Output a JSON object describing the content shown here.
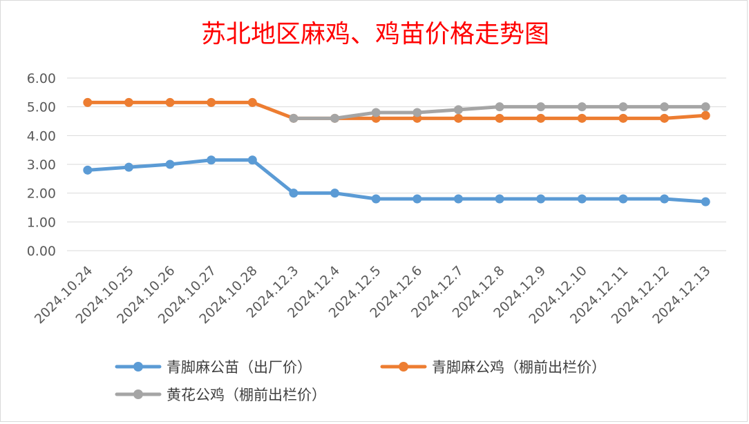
{
  "chart_data": {
    "type": "line",
    "title": "苏北地区麻鸡、鸡苗价格走势图",
    "xlabel": "",
    "ylabel": "",
    "ylim": [
      0,
      6
    ],
    "yticks": [
      "0.00",
      "1.00",
      "2.00",
      "3.00",
      "4.00",
      "5.00",
      "6.00"
    ],
    "grid": "horizontal",
    "legend_position": "bottom",
    "categories": [
      "2024.10.24",
      "2024.10.25",
      "2024.10.26",
      "2024.10.27",
      "2024.10.28",
      "2024.12.3",
      "2024.12.4",
      "2024.12.5",
      "2024.12.6",
      "2024.12.7",
      "2024.12.8",
      "2024.12.9",
      "2024.12.10",
      "2024.12.11",
      "2024.12.12",
      "2024.12.13"
    ],
    "series": [
      {
        "name": "青脚麻公苗（出厂价）",
        "color": "#5b9bd5",
        "values": [
          2.8,
          2.9,
          3.0,
          3.15,
          3.15,
          2.0,
          2.0,
          1.8,
          1.8,
          1.8,
          1.8,
          1.8,
          1.8,
          1.8,
          1.8,
          1.7
        ]
      },
      {
        "name": "青脚麻公鸡（棚前出栏价）",
        "color": "#ed7d31",
        "values": [
          5.15,
          5.15,
          5.15,
          5.15,
          5.15,
          4.6,
          4.6,
          4.6,
          4.6,
          4.6,
          4.6,
          4.6,
          4.6,
          4.6,
          4.6,
          4.7
        ]
      },
      {
        "name": "黄花公鸡（棚前出栏价）",
        "color": "#a5a5a5",
        "values": [
          null,
          null,
          null,
          null,
          null,
          4.6,
          4.6,
          4.8,
          4.8,
          4.9,
          5.0,
          5.0,
          5.0,
          5.0,
          5.0,
          5.0
        ]
      }
    ]
  }
}
